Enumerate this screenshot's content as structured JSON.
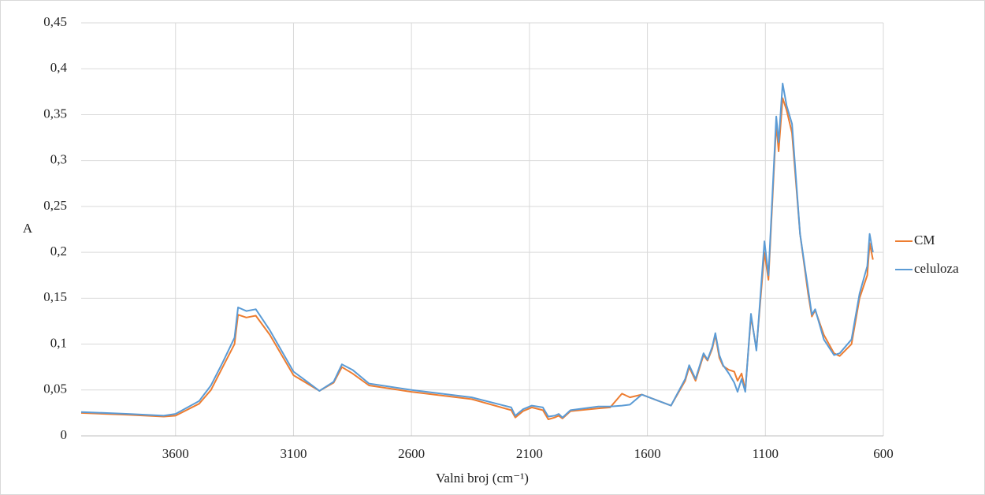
{
  "chart_data": {
    "type": "line",
    "x_label": "Valni broj (cm⁻¹)",
    "y_label": "A",
    "x": [
      4000,
      3800,
      3650,
      3600,
      3500,
      3450,
      3400,
      3350,
      3335,
      3300,
      3260,
      3200,
      3100,
      2990,
      2930,
      2895,
      2850,
      2780,
      2600,
      2345,
      2177,
      2160,
      2127,
      2090,
      2043,
      2020,
      1993,
      1976,
      1960,
      1926,
      1808,
      1758,
      1708,
      1674,
      1624,
      1500,
      1440,
      1423,
      1396,
      1362,
      1345,
      1325,
      1312,
      1295,
      1279,
      1255,
      1232,
      1218,
      1201,
      1185,
      1161,
      1138,
      1104,
      1087,
      1054,
      1044,
      1027,
      1010,
      987,
      953,
      919,
      903,
      889,
      852,
      809,
      785,
      735,
      701,
      668,
      658,
      644
    ],
    "series": [
      {
        "name": "CM",
        "color": "#ed7d31",
        "values": [
          0.025,
          0.023,
          0.021,
          0.022,
          0.035,
          0.05,
          0.075,
          0.1,
          0.132,
          0.129,
          0.131,
          0.11,
          0.066,
          0.049,
          0.058,
          0.075,
          0.068,
          0.055,
          0.048,
          0.04,
          0.028,
          0.02,
          0.027,
          0.031,
          0.028,
          0.018,
          0.02,
          0.022,
          0.019,
          0.027,
          0.03,
          0.031,
          0.046,
          0.042,
          0.045,
          0.033,
          0.06,
          0.075,
          0.06,
          0.088,
          0.082,
          0.095,
          0.11,
          0.085,
          0.076,
          0.072,
          0.07,
          0.06,
          0.068,
          0.05,
          0.13,
          0.095,
          0.2,
          0.17,
          0.34,
          0.31,
          0.368,
          0.355,
          0.33,
          0.22,
          0.155,
          0.13,
          0.137,
          0.11,
          0.09,
          0.087,
          0.1,
          0.15,
          0.175,
          0.21,
          0.192
        ]
      },
      {
        "name": "celuloza",
        "color": "#5b9bd5",
        "values": [
          0.026,
          0.024,
          0.022,
          0.024,
          0.038,
          0.055,
          0.08,
          0.107,
          0.14,
          0.136,
          0.138,
          0.115,
          0.07,
          0.049,
          0.059,
          0.078,
          0.072,
          0.057,
          0.05,
          0.042,
          0.031,
          0.022,
          0.029,
          0.033,
          0.031,
          0.021,
          0.022,
          0.024,
          0.02,
          0.028,
          0.032,
          0.032,
          0.033,
          0.034,
          0.045,
          0.033,
          0.062,
          0.077,
          0.062,
          0.09,
          0.083,
          0.097,
          0.112,
          0.088,
          0.077,
          0.068,
          0.058,
          0.048,
          0.062,
          0.048,
          0.133,
          0.093,
          0.212,
          0.175,
          0.348,
          0.32,
          0.384,
          0.36,
          0.34,
          0.22,
          0.16,
          0.132,
          0.138,
          0.105,
          0.088,
          0.09,
          0.105,
          0.155,
          0.185,
          0.22,
          0.2
        ]
      }
    ],
    "xlim": [
      4000,
      600
    ],
    "xticks": [
      3600,
      3100,
      2600,
      2100,
      1600,
      1100,
      600
    ],
    "ylim": [
      0,
      0.45
    ],
    "yticks": [
      0,
      {
        "value": 0.05,
        "label": "0,05"
      },
      {
        "value": 0.1,
        "label": "0,1"
      },
      {
        "value": 0.15,
        "label": "0,15"
      },
      {
        "value": 0.2,
        "label": "0,2"
      },
      {
        "value": 0.25,
        "label": "0,25"
      },
      {
        "value": 0.3,
        "label": "0,3"
      },
      {
        "value": 0.35,
        "label": "0,35"
      },
      {
        "value": 0.4,
        "label": "0,4"
      },
      {
        "value": 0.45,
        "label": "0,45"
      }
    ],
    "grid": true,
    "legend": "right"
  }
}
